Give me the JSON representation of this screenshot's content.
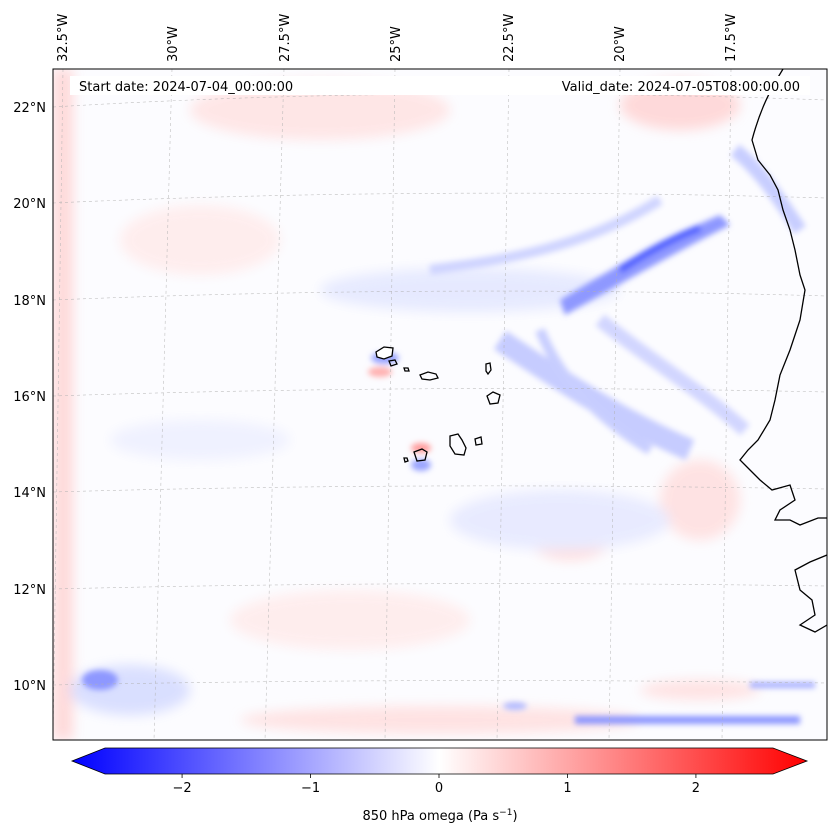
{
  "header": {
    "start_date": "Start date: 2024-07-04_00:00:00",
    "valid_date": "Valid_date: 2024-07-05T08:00:00.00"
  },
  "map": {
    "top_lon_labels": [
      "32.5°W",
      "30°W",
      "27.5°W",
      "25°W",
      "22.5°W",
      "20°W",
      "17.5°W"
    ],
    "left_lat_labels": [
      "22°N",
      "20°N",
      "18°N",
      "16°N",
      "14°N",
      "12°N",
      "10°N"
    ],
    "gridlines": true
  },
  "colorbar": {
    "ticks": [
      "−2",
      "−1",
      "0",
      "1",
      "2"
    ],
    "tick_values": [
      -2,
      -1,
      0,
      1,
      2
    ],
    "range": [
      -2.6,
      2.6
    ],
    "colormap": "bwr",
    "extend": "both",
    "label_main": "850 hPa omega (Pa s",
    "label_sup": "−1",
    "label_tail": ")"
  },
  "colors": {
    "negative": "#0000ff",
    "zero": "#ffffff",
    "positive": "#ff0000",
    "coastline": "#000000",
    "gridline": "#b0b0b0"
  }
}
